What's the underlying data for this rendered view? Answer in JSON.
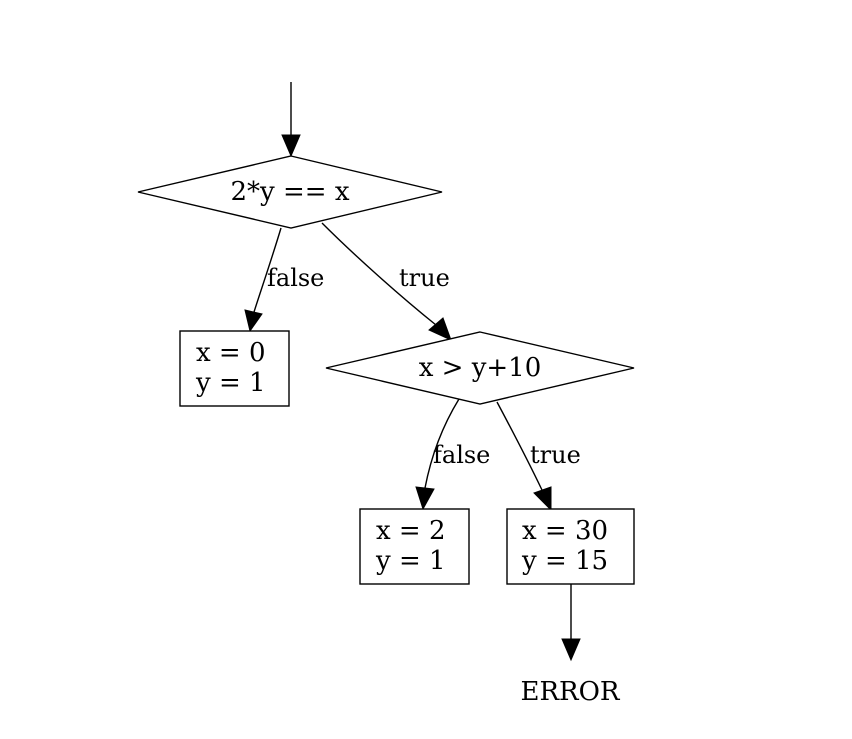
{
  "diagram": {
    "decisions": {
      "d1": "2*y == x",
      "d2": "x > y+10"
    },
    "boxes": {
      "b1": [
        "x = 0",
        "y = 1"
      ],
      "b2": [
        "x = 2",
        "y = 1"
      ],
      "b3": [
        "x = 30",
        "y = 15"
      ]
    },
    "edge_labels": {
      "d1_false": "false",
      "d1_true": "true",
      "d2_false": "false",
      "d2_true": "true"
    },
    "terminal": "ERROR"
  }
}
